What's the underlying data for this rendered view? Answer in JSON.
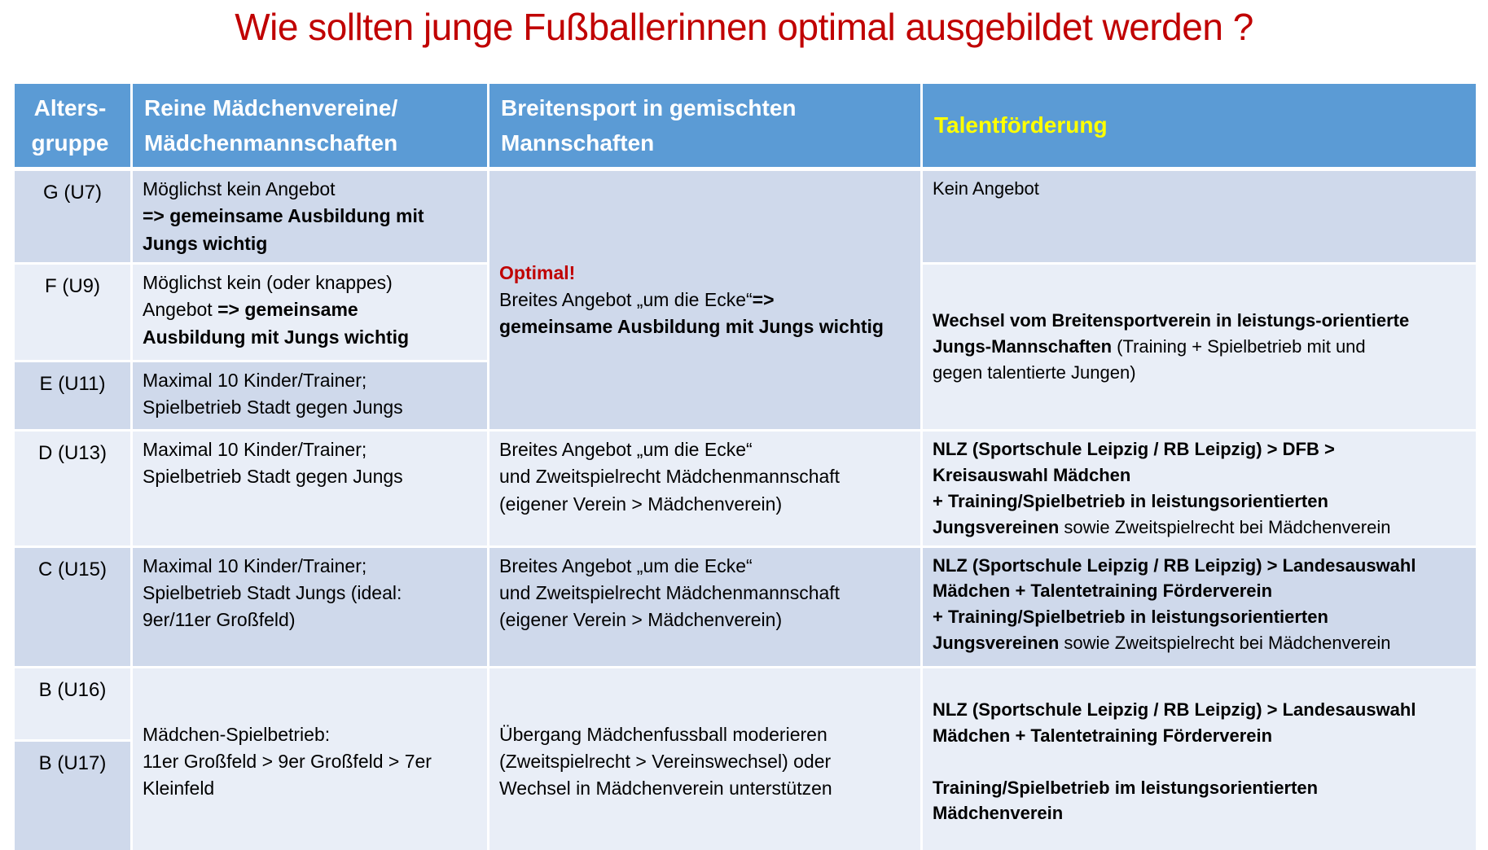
{
  "slide_title": "Wie sollten junge Fußballerinnen optimal ausgebildet werden ?",
  "colors": {
    "title": "#C00000",
    "header_bg": "#5B9BD5",
    "header_text": "#FFFFFF",
    "talent_header": "#FFFF00",
    "row_dark": "#CFD9EB",
    "row_light": "#E9EEF7",
    "emphasis_red": "#C00000",
    "body_text": "#000000"
  },
  "table": {
    "header": {
      "col1": [
        {
          "t": "Alters-"
        },
        {
          "br": 1,
          "t": "gruppe"
        }
      ],
      "col2": [
        {
          "t": "Reine Mädchenvereine/"
        },
        {
          "br": 1,
          "t": "Mädchenmannschaften"
        }
      ],
      "col3": [
        {
          "t": "Breitensport in gemischten"
        },
        {
          "br": 1,
          "t": "Mannschaften"
        }
      ],
      "col4": [
        {
          "t": "Talentförderung",
          "c": "#FFFF00"
        }
      ]
    },
    "rows": {
      "g": {
        "age": "G (U7)",
        "reine": [
          {
            "t": "Möglichst kein Angebot"
          },
          {
            "br": 1,
            "t": "=> gemeinsame Ausbildung mit",
            "b": true
          },
          {
            "br": 1,
            "t": "Jungs wichtig",
            "b": true
          }
        ],
        "talent": "Kein Angebot"
      },
      "gfe": {
        "breitensport": [
          {
            "t": "Optimal!",
            "b": true,
            "c": "#C00000"
          },
          {
            "br": 1,
            "t": "Breites Angebot „um die Ecke“"
          },
          {
            "t": "=>",
            "b": true
          },
          {
            "br": 1,
            "t": "gemeinsame Ausbildung mit Jungs wichtig",
            "b": true
          }
        ]
      },
      "f": {
        "age": "F (U9)",
        "reine": [
          {
            "t": "Möglichst kein (oder knappes)"
          },
          {
            "br": 1,
            "t": "Angebot "
          },
          {
            "t": "=> gemeinsame",
            "b": true
          },
          {
            "br": 1,
            "t": "Ausbildung mit Jungs wichtig",
            "b": true
          }
        ]
      },
      "fe": {
        "talent": [
          {
            "t": "Wechsel vom Breitensportverein in leistungs-orientierte",
            "b": true
          },
          {
            "br": 1,
            "t": "Jungs-Mannschaften",
            "b": true
          },
          {
            "t": " (Training + Spielbetrieb mit und"
          },
          {
            "br": 1,
            "t": "gegen talentierte Jungen)"
          }
        ]
      },
      "e": {
        "age": "E (U11)",
        "reine": [
          {
            "t": "Maximal 10 Kinder/Trainer;"
          },
          {
            "br": 1,
            "t": "Spielbetrieb Stadt gegen Jungs"
          }
        ]
      },
      "d": {
        "age": "D (U13)",
        "reine": [
          {
            "t": "Maximal 10 Kinder/Trainer;"
          },
          {
            "br": 1,
            "t": "Spielbetrieb Stadt gegen Jungs"
          }
        ],
        "breitensport": [
          {
            "t": "Breites Angebot „um die Ecke“"
          },
          {
            "br": 1,
            "t": "und Zweitspielrecht Mädchenmannschaft"
          },
          {
            "br": 1,
            "t": "(eigener Verein > Mädchenverein)"
          }
        ],
        "talent": [
          {
            "t": "NLZ (Sportschule Leipzig / RB Leipzig) > DFB >",
            "b": true
          },
          {
            "br": 1,
            "t": "Kreisauswahl Mädchen",
            "b": true
          },
          {
            "br": 1,
            "t": "+ Training/Spielbetrieb in leistungsorientierten",
            "b": true
          },
          {
            "br": 1,
            "t": "Jungsvereinen",
            "b": true
          },
          {
            "t": " sowie Zweitspielrecht bei Mädchenverein"
          }
        ]
      },
      "c": {
        "age": "C (U15)",
        "reine": [
          {
            "t": "Maximal 10 Kinder/Trainer;"
          },
          {
            "br": 1,
            "t": "Spielbetrieb Stadt Jungs (ideal:"
          },
          {
            "br": 1,
            "t": "9er/11er Großfeld)"
          }
        ],
        "breitensport": [
          {
            "t": "Breites Angebot „um die Ecke“"
          },
          {
            "br": 1,
            "t": "und Zweitspielrecht Mädchenmannschaft"
          },
          {
            "br": 1,
            "t": "(eigener Verein > Mädchenverein)"
          }
        ],
        "talent": [
          {
            "t": "NLZ (Sportschule Leipzig / RB Leipzig) > Landesauswahl",
            "b": true
          },
          {
            "br": 1,
            "t": "Mädchen + Talentetraining Förderverein",
            "b": true
          },
          {
            "br": 1,
            "t": "+ Training/Spielbetrieb in leistungsorientierten",
            "b": true
          },
          {
            "br": 1,
            "t": "Jungsvereinen",
            "b": true
          },
          {
            "t": " sowie Zweitspielrecht bei Mädchenverein"
          }
        ]
      },
      "b16": {
        "age": "B (U16)"
      },
      "b17": {
        "age": "B (U17)"
      },
      "b": {
        "reine": [
          {
            "t": "Mädchen-Spielbetrieb:"
          },
          {
            "br": 1,
            "t": "11er Großfeld > 9er Großfeld > 7er"
          },
          {
            "br": 1,
            "t": "Kleinfeld"
          }
        ],
        "breitensport": [
          {
            "t": "Übergang Mädchenfussball moderieren"
          },
          {
            "br": 1,
            "t": "(Zweitspielrecht > Vereinswechsel) oder"
          },
          {
            "br": 1,
            "t": "Wechsel in Mädchenverein unterstützen"
          }
        ],
        "talent": [
          {
            "t": "NLZ (Sportschule Leipzig / RB Leipzig) > Landesauswahl",
            "b": true
          },
          {
            "br": 1,
            "t": "Mädchen + Talentetraining Förderverein",
            "b": true
          },
          {
            "br": 2,
            "t": "Training/Spielbetrieb im leistungsorientierten",
            "b": true
          },
          {
            "br": 1,
            "t": "Mädchenverein",
            "b": true
          }
        ]
      }
    }
  }
}
